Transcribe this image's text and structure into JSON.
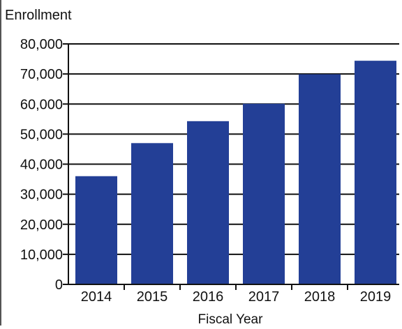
{
  "chart_data": {
    "type": "bar",
    "title": "",
    "ylabel": "Enrollment",
    "xlabel": "Fiscal Year",
    "categories": [
      "2014",
      "2015",
      "2016",
      "2017",
      "2018",
      "2019"
    ],
    "values": [
      36000,
      47000,
      54300,
      60100,
      69900,
      74400
    ],
    "ylim": [
      0,
      80000
    ],
    "yticks": [
      "0",
      "10,000",
      "20,000",
      "30,000",
      "40,000",
      "50,000",
      "60,000",
      "70,000",
      "80,000"
    ],
    "grid": true,
    "legend": "none",
    "colors": {
      "bar": "#233f96",
      "axis": "#111111",
      "grid": "#111111",
      "frame": "#555555"
    }
  }
}
